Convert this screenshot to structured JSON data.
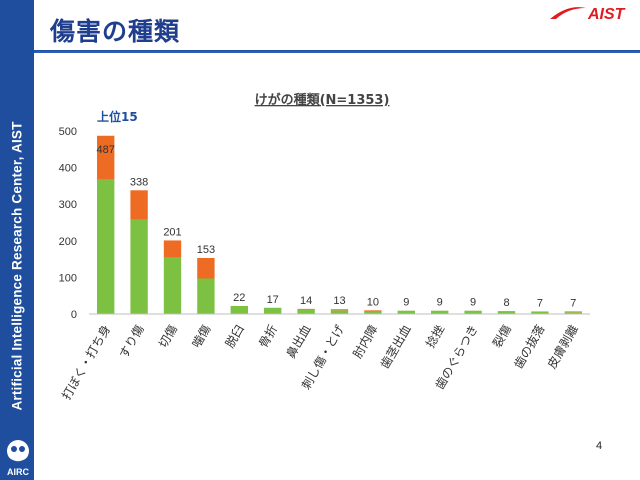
{
  "sidebar": {
    "text": "Artificial Intelligence Research Center, AIST",
    "logo_text": "AIRC"
  },
  "header": {
    "title": "傷害の種類",
    "logo_text": "AIST"
  },
  "page_number": "4",
  "colors": {
    "green": "#7dc142",
    "orange": "#ee6b24",
    "sidebar": "#1f4e9e",
    "title": "#1f3f8e",
    "logo_red": "#e01b22"
  },
  "chart_data": {
    "type": "bar",
    "title": "けがの種類(N=1353)",
    "annotation": "上位15",
    "categories": [
      "打ぼく・打ち身",
      "すり傷",
      "切傷",
      "噛傷",
      "脱臼",
      "骨折",
      "鼻出血",
      "刺し傷・とげ",
      "肘内障",
      "歯茎出血",
      "捻挫",
      "歯のぐらつき",
      "裂傷",
      "歯の抜落",
      "皮膚剥離"
    ],
    "totals": [
      487,
      338,
      201,
      153,
      22,
      17,
      14,
      13,
      10,
      9,
      9,
      9,
      8,
      7,
      7
    ],
    "series": [
      {
        "color": "#7dc142",
        "values": [
          367,
          258,
          154,
          97,
          22,
          17,
          12,
          10,
          7,
          9,
          9,
          9,
          8,
          7,
          5
        ]
      },
      {
        "color": "#ee6b24",
        "values": [
          120,
          80,
          47,
          56,
          0,
          0,
          2,
          3,
          3,
          0,
          0,
          0,
          0,
          0,
          2
        ]
      }
    ],
    "yticks": [
      0,
      100,
      200,
      300,
      400,
      500
    ],
    "ylim": [
      0,
      500
    ],
    "grid": false,
    "legend": "none"
  }
}
